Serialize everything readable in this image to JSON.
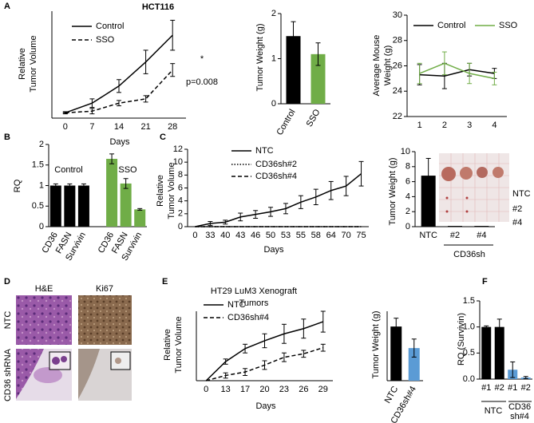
{
  "panel_labels": [
    "A",
    "B",
    "C",
    "D",
    "E",
    "F"
  ],
  "histology": {
    "columns": [
      "H&E",
      "Ki67"
    ],
    "rows": [
      "NTC",
      "CD36 shRNA"
    ]
  },
  "chart_data": [
    {
      "type": "line",
      "title": [
        "HCT116"
      ],
      "ylabel": [
        "Relative",
        "Tumor Volume"
      ],
      "xlabel": "Days",
      "categories": [
        "0",
        "7",
        "14",
        "21",
        "28"
      ],
      "ylim": [
        0,
        20
      ],
      "series": [
        {
          "name": "Control",
          "color": "#000000",
          "dash": "solid",
          "values": [
            1,
            2.8,
            6,
            10.5,
            15.5
          ],
          "errors": [
            0.2,
            0.8,
            1.2,
            2.2,
            2.8
          ]
        },
        {
          "name": "SSO",
          "color": "#000000",
          "dash": "dashed",
          "values": [
            1,
            1.3,
            2.8,
            3.6,
            9
          ],
          "errors": [
            0.1,
            0.5,
            0.5,
            0.6,
            1.2
          ]
        }
      ],
      "annotations": [
        "*",
        "p=0.008"
      ]
    },
    {
      "type": "bar",
      "ylabel": [
        "Tumor Weight (g)"
      ],
      "categories": [
        "Control",
        "SSO"
      ],
      "values": [
        1.5,
        1.1
      ],
      "errors": [
        0.32,
        0.25
      ],
      "colors": [
        "#000000",
        "#70ad47"
      ],
      "ylim": [
        0,
        2
      ],
      "yticks": [
        0,
        1,
        2
      ]
    },
    {
      "type": "line",
      "ylabel": [
        "Average Mouse",
        "Weight (g)"
      ],
      "categories": [
        "1",
        "2",
        "3",
        "4"
      ],
      "ylim": [
        22,
        30
      ],
      "yticks": [
        22,
        24,
        26,
        28,
        30
      ],
      "series": [
        {
          "name": "Control",
          "color": "#000000",
          "dash": "solid",
          "values": [
            25.3,
            25.2,
            25.7,
            25.4
          ],
          "errors": [
            0.8,
            1.0,
            0.5,
            0.4
          ]
        },
        {
          "name": "SSO",
          "color": "#70ad47",
          "dash": "solid",
          "values": [
            25.4,
            26.2,
            25.4,
            25.0
          ],
          "errors": [
            0.8,
            0.9,
            0.8,
            0.5
          ]
        }
      ]
    },
    {
      "type": "bar",
      "ylabel": [
        "RQ"
      ],
      "categories": [
        "CD36",
        "FASN",
        "Survivin",
        null,
        "CD36",
        "FASN",
        "Survivin"
      ],
      "values": [
        1,
        1,
        1,
        null,
        1.65,
        1.05,
        0.42
      ],
      "errors": [
        0.04,
        0.04,
        0.04,
        null,
        0.12,
        0.12,
        0.02
      ],
      "colors": [
        "#000000",
        "#000000",
        "#000000",
        null,
        "#70ad47",
        "#70ad47",
        "#70ad47"
      ],
      "ylim": [
        0,
        2
      ],
      "yticks": [
        0,
        0.5,
        1,
        1.5,
        2
      ],
      "group_labels": [
        [
          "Control"
        ],
        [
          "SSO"
        ]
      ]
    },
    {
      "type": "line",
      "ylabel": [
        "Relative",
        "Tumor Volume"
      ],
      "xlabel": "Days",
      "categories": [
        "0",
        "33",
        "40",
        "43",
        "46",
        "50",
        "53",
        "55",
        "58",
        "64",
        "70",
        "75"
      ],
      "ylim": [
        0,
        12
      ],
      "yticks": [
        0,
        2,
        4,
        6,
        8,
        10,
        12
      ],
      "series": [
        {
          "name": "NTC",
          "color": "#000000",
          "dash": "solid",
          "values": [
            0,
            0.5,
            0.7,
            1.5,
            1.9,
            2.3,
            2.8,
            3.8,
            4.6,
            5.6,
            6.3,
            8.2
          ],
          "errors": [
            0,
            0.3,
            0.3,
            0.6,
            0.6,
            0.7,
            0.8,
            1.0,
            1.2,
            1.4,
            1.5,
            1.9
          ]
        },
        {
          "name": "CD36sh#2",
          "color": "#000000",
          "dash": "dotted",
          "values": [
            0,
            0,
            0,
            0,
            0,
            0,
            0,
            0,
            0,
            0,
            0,
            0
          ]
        },
        {
          "name": "CD36sh#4",
          "color": "#000000",
          "dash": "dashed",
          "values": [
            0,
            0,
            0,
            0,
            0,
            0,
            0,
            0,
            0,
            0,
            0,
            0
          ]
        }
      ]
    },
    {
      "type": "bar",
      "ylabel": [
        "Tumor Weight (g)"
      ],
      "categories": [
        "NTC",
        "#2",
        "#4"
      ],
      "values": [
        6.8,
        0.1,
        0.1
      ],
      "errors": [
        2.3,
        0,
        0
      ],
      "colors": [
        "#000000",
        "#000000",
        "#000000"
      ],
      "ylim": [
        0,
        10
      ],
      "yticks": [
        0,
        2,
        4,
        6,
        8,
        10
      ],
      "group_labels": [
        [
          "CD36sh"
        ]
      ],
      "inset_labels": [
        "NTC",
        "#2",
        "#4"
      ]
    },
    {
      "type": "line",
      "title": [
        "HT29 LuM3 Xenograft",
        "Tumors"
      ],
      "ylabel": [
        "Relative",
        "Tumor Volume"
      ],
      "xlabel": "Days",
      "categories": [
        "0",
        "13",
        "17",
        "20",
        "23",
        "26",
        "29"
      ],
      "ylim": [
        0,
        8
      ],
      "series": [
        {
          "name": "NTC",
          "color": "#000000",
          "dash": "solid",
          "values": [
            0,
            2.2,
            3.7,
            4.6,
            5.4,
            6.0,
            6.8
          ],
          "errors": [
            0,
            0.3,
            0.5,
            0.8,
            1.1,
            1.1,
            1.2
          ]
        },
        {
          "name": "CD36sh#4",
          "color": "#000000",
          "dash": "dashed",
          "values": [
            0,
            0.6,
            1.0,
            1.8,
            2.7,
            3.1,
            3.8
          ],
          "errors": [
            0,
            0.3,
            0.4,
            0.5,
            0.5,
            0.4,
            0.4
          ]
        }
      ]
    },
    {
      "type": "bar",
      "ylabel": [
        "Tumor Weight (g)"
      ],
      "categories": [
        "NTC",
        "CD36sh#4"
      ],
      "values": [
        7.8,
        4.7
      ],
      "errors": [
        1.2,
        1.3
      ],
      "colors": [
        "#000000",
        "#5b9bd5"
      ],
      "ylim": [
        0,
        10
      ]
    },
    {
      "type": "bar",
      "ylabel": [
        "RQ (Survivin)"
      ],
      "categories": [
        "#1",
        "#2",
        "#1",
        "#2"
      ],
      "values": [
        1,
        1,
        0.18,
        0.03
      ],
      "errors": [
        0.02,
        0.15,
        0.15,
        0.02
      ],
      "colors": [
        "#000000",
        "#000000",
        "#5b9bd5",
        "#5b9bd5"
      ],
      "ylim": [
        0,
        1.5
      ],
      "yticks": [
        {
          "value": 0,
          "label": "0.0"
        },
        {
          "value": 0.5,
          "label": "0.5"
        },
        {
          "value": 1,
          "label": "1.0"
        },
        {
          "value": 1.5,
          "label": "1.5"
        }
      ],
      "group_labels": [
        [
          "NTC"
        ],
        [
          "CD36",
          "sh#4"
        ]
      ]
    }
  ]
}
